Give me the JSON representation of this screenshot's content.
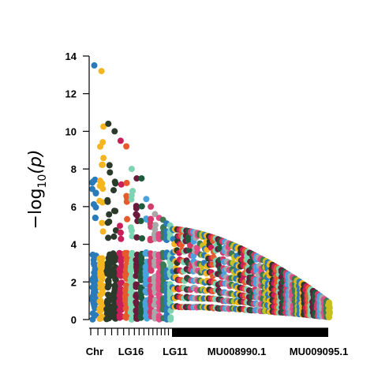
{
  "chart_data": {
    "type": "scatter",
    "title": "",
    "xlabel": "Chr",
    "ylabel": {
      "prefix": "−log",
      "sub": "10",
      "suffix": "(p)"
    },
    "ylim": [
      0,
      14
    ],
    "yticks": [
      0,
      2,
      4,
      6,
      8,
      10,
      12,
      14
    ],
    "xtick_labels": [
      "LG16",
      "LG11",
      "MU008990.1",
      "MU009095.1"
    ],
    "grid": false,
    "legend": "none",
    "palette": [
      "#2b7bba",
      "#f5b520",
      "#2b3a2b",
      "#c81e5a",
      "#e65a2b",
      "#7ed3b2",
      "#6b1a3c",
      "#1e5a3c",
      "#d43b6b",
      "#4aa3df",
      "#a8a8a8",
      "#e34a86",
      "#3d7a54",
      "#c9c01e"
    ],
    "chromosomes": [
      {
        "name": "",
        "n": 60,
        "max": 13.5,
        "color": "#2b7bba"
      },
      {
        "name": "",
        "n": 60,
        "max": 13.2,
        "color": "#f5b520"
      },
      {
        "name": "",
        "n": 55,
        "max": 10.4,
        "color": "#2b3a2b"
      },
      {
        "name": "",
        "n": 50,
        "max": 10.0,
        "color": "#2b3a2b"
      },
      {
        "name": "",
        "n": 50,
        "max": 9.5,
        "color": "#c81e5a"
      },
      {
        "name": "",
        "n": 45,
        "max": 9.2,
        "color": "#e65a2b"
      },
      {
        "name": "",
        "n": 45,
        "max": 8.0,
        "color": "#7ed3b2"
      },
      {
        "name": "",
        "n": 40,
        "max": 7.5,
        "color": "#6b1a3c"
      },
      {
        "name": "",
        "n": 40,
        "max": 7.5,
        "color": "#1e5a3c"
      },
      {
        "name": "LG16",
        "n": 40,
        "max": 6.4,
        "color": "#4aa3df"
      },
      {
        "name": "",
        "n": 35,
        "max": 6.0,
        "color": "#d43b6b"
      },
      {
        "name": "",
        "n": 35,
        "max": 5.6,
        "color": "#a8a8a8"
      },
      {
        "name": "",
        "n": 35,
        "max": 5.4,
        "color": "#e34a86"
      },
      {
        "name": "",
        "n": 30,
        "max": 5.3,
        "color": "#3d7a54"
      },
      {
        "name": "",
        "n": 30,
        "max": 5.1,
        "color": "#2b7bba"
      },
      {
        "name": "LG11",
        "n": 30,
        "max": 5.0,
        "color": "#7ed3b2"
      }
    ],
    "scaffold_tail": {
      "count": 70,
      "start_max": 4.8,
      "end_max": 0.9,
      "label_a": "MU008990.1",
      "label_b": "MU009095.1"
    }
  }
}
